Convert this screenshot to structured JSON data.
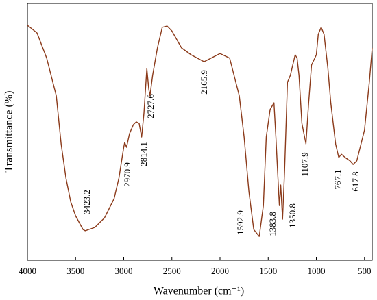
{
  "chart_data": {
    "type": "line",
    "xlabel": "Wavenumber (cm⁻¹)",
    "ylabel": "Transmittance (%)",
    "x": [
      4000,
      3900,
      3800,
      3700,
      3650,
      3600,
      3550,
      3500,
      3423.2,
      3400,
      3300,
      3200,
      3100,
      3050,
      3000,
      2990,
      2970.9,
      2940,
      2900,
      2870,
      2840,
      2814.1,
      2790,
      2760,
      2740,
      2727.6,
      2700,
      2650,
      2600,
      2550,
      2500,
      2400,
      2300,
      2165.9,
      2000,
      1900,
      1800,
      1750,
      1700,
      1650,
      1592.9,
      1550,
      1520,
      1480,
      1440,
      1420,
      1400,
      1383.8,
      1370,
      1350.8,
      1330,
      1300,
      1270,
      1220,
      1200,
      1180,
      1150,
      1107.9,
      1080,
      1050,
      1000,
      980,
      950,
      920,
      880,
      850,
      800,
      767.1,
      740,
      700,
      650,
      617.8,
      580,
      500,
      450,
      420
    ],
    "series": [
      {
        "color": "#8b3a1a",
        "values": [
          91.5,
          88.5,
          78.7,
          64,
          45.3,
          32,
          22.7,
          17.3,
          12,
          11.5,
          12.8,
          16.5,
          24,
          32,
          44,
          45.9,
          44,
          49.3,
          52.8,
          53.9,
          53.3,
          48,
          57.3,
          74.7,
          66.7,
          64,
          72,
          82.7,
          90.7,
          91.2,
          89.3,
          82.7,
          80,
          77.3,
          80.5,
          78.7,
          64,
          48,
          26.7,
          12,
          9.3,
          21.3,
          48,
          58.7,
          61.3,
          48,
          33,
          21.3,
          29.3,
          16,
          34.7,
          69.3,
          72,
          80,
          78.7,
          72,
          53.3,
          45.3,
          61.3,
          76,
          80,
          88,
          90.7,
          88,
          74.7,
          61.3,
          45.3,
          40,
          41.3,
          40,
          38.7,
          37.3,
          38.7,
          50.7,
          69.3,
          82.7
        ]
      }
    ],
    "xlim": [
      4000,
      420
    ],
    "ylim": [
      0,
      100
    ],
    "xticks": [
      4000,
      3500,
      3000,
      2500,
      2000,
      1500,
      1000,
      500
    ],
    "annotations": [
      "3423.2",
      "2970.9",
      "2814.1",
      "2727.6",
      "2165.9",
      "1592.9",
      "1383.8",
      "1350.8",
      "1107.9",
      "767.1",
      "617.8"
    ]
  }
}
